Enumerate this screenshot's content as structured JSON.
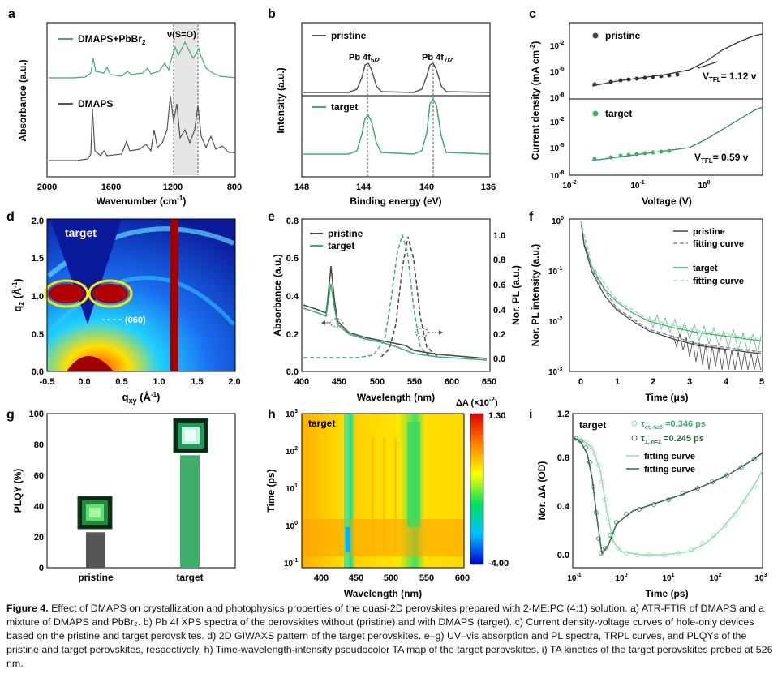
{
  "colors": {
    "dark": "#444444",
    "green": "#3fae6a",
    "shade": "#e6e6e6",
    "lightgreen": "#8fe0a8"
  },
  "panels": {
    "a": {
      "letter": "a",
      "legend": [
        "DMAPS+PbBr",
        "DMAPS"
      ],
      "legend_sub": "2",
      "annotation": "ν(S=O)",
      "xlabel": "Wavenumber (cm",
      "xlabel_tail": ")",
      "ylabel": "Absorbance (a.u.)",
      "xticks": [
        "2000",
        "1600",
        "1200",
        "800"
      ]
    },
    "b": {
      "letter": "b",
      "legend": [
        "pristine",
        "target"
      ],
      "peak1": "Pb 4f",
      "peak1_sub": "5/2",
      "peak2": "Pb 4f",
      "peak2_sub": "7/2",
      "xlabel": "Binding energy (eV)",
      "ylabel": "Intensity (a.u.)",
      "xticks": [
        "148",
        "144",
        "140",
        "136"
      ]
    },
    "c": {
      "letter": "c",
      "legend": [
        "pristine",
        "target"
      ],
      "vtfl_top": "= 1.12 v",
      "vtfl_bot": "= 0.59 v",
      "xlabel": "Voltage (V)",
      "ylabel": "Current density (mA cm",
      "yticks_top": [
        "10",
        "10",
        "10"
      ],
      "yticks_top_exp": [
        "-2",
        "-5",
        "-8"
      ],
      "yticks_bot": [
        "10",
        "10",
        "10"
      ],
      "yticks_bot_exp": [
        "-2",
        "-5",
        "-8"
      ],
      "xticks": [
        "10",
        "10",
        "10"
      ],
      "xticks_exp": [
        "-2",
        "-1",
        "0"
      ]
    },
    "d": {
      "letter": "d",
      "label": "target",
      "annotation": "(060)",
      "xlabel": "q",
      "xlabel_sub": "xy",
      "xlabel_tail": "(Å",
      "ylabel": "q",
      "ylabel_sub": "z",
      "xticks": [
        "-0.5",
        "0.0",
        "0.5",
        "1.0",
        "1.5",
        "2.0"
      ],
      "yticks": [
        "0.0",
        "0.5",
        "1.0",
        "1.5",
        "2.0"
      ]
    },
    "e": {
      "letter": "e",
      "legend": [
        "pristine",
        "target"
      ],
      "xlabel": "Wavelength (nm)",
      "ylabel": "Absorbance (a.u.)",
      "y2label": "Nor. PL (a.u.)",
      "xticks": [
        "400",
        "450",
        "500",
        "550",
        "600",
        "650"
      ],
      "yticks": [
        "0.0",
        "0.2",
        "0.4",
        "0.6",
        "0.8"
      ],
      "y2ticks": [
        "0.0",
        "0.2",
        "0.4",
        "0.6",
        "0.8",
        "1.0"
      ]
    },
    "f": {
      "letter": "f",
      "legend": [
        "pristine",
        "fitting curve",
        "target",
        "fitting curve"
      ],
      "xlabel": "Time (μs)",
      "ylabel": "Nor. PL intensity (a.u.)",
      "xticks": [
        "0",
        "1",
        "2",
        "3",
        "4",
        "5"
      ],
      "yticks": [
        "10",
        "10",
        "10",
        "10"
      ],
      "yticks_exp": [
        "0",
        "-1",
        "-2",
        "-3"
      ]
    },
    "g": {
      "letter": "g",
      "ylabel": "PLQY (%)",
      "categories": [
        "pristine",
        "target"
      ],
      "values": [
        23,
        73
      ],
      "yticks": [
        "0",
        "20",
        "40",
        "60",
        "80",
        "100"
      ]
    },
    "h": {
      "letter": "h",
      "label": "target",
      "cbar_title": "ΔA (×10",
      "cbar_max": "1.30",
      "cbar_min": "-4.00",
      "xlabel": "Wavelength (nm)",
      "ylabel": "Time (ps)",
      "xticks": [
        "400",
        "450",
        "500",
        "550",
        "600"
      ],
      "yticks": [
        "10",
        "10",
        "10",
        "10",
        "10"
      ],
      "yticks_exp": [
        "3",
        "2",
        "1",
        "0",
        "-1"
      ]
    },
    "i": {
      "letter": "i",
      "label": "target",
      "legend": [
        "τ",
        "=0.346 ps",
        "τ",
        "=0.245 ps",
        "fitting curve",
        "fitting curve"
      ],
      "sub1": "et, n≥5",
      "sub2": "1, n=2",
      "xlabel": "Time (ps)",
      "ylabel": "Nor. ΔA (OD)",
      "xticks": [
        "10",
        "10",
        "10",
        "10",
        "10"
      ],
      "xticks_exp": [
        "-1",
        "0",
        "1",
        "2",
        "3"
      ],
      "yticks": [
        "1.2",
        "0.8",
        "0.4",
        "0.0"
      ]
    }
  },
  "caption": {
    "label": "Figure 4.",
    "text": "Effect of DMAPS on crystallization and photophysics properties of the quasi-2D perovskites prepared with 2-ME:PC (4:1) solution. a) ATR-FTIR of DMAPS and a mixture of DMAPS and PbBr₂. b) Pb 4f XPS spectra of the perovskites without (pristine) and with DMAPS (target). c) Current density-voltage curves of hole-only devices based on the pristine and target perovskites. d) 2D GIWAXS pattern of the target perovskites. e–g) UV–vis absorption and PL spectra, TRPL curves, and PLQYs of the pristine and target perovskites, respectively. h) Time-wavelength-intensity pseudocolor TA map of the target perovskites. i) TA kinetics of the target perovskites probed at 526 nm."
  }
}
